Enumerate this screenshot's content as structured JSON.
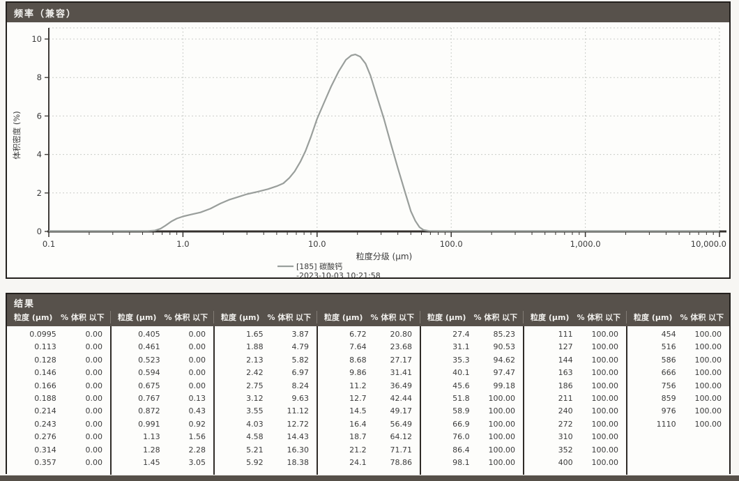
{
  "chart_panel": {
    "title": "频率（兼容）"
  },
  "chart_data": {
    "type": "line",
    "title": "频率（兼容）",
    "xlabel": "粒度分级 (μm)",
    "ylabel": "体积密度 (%)",
    "x_scale": "log",
    "xlim": [
      0.1,
      10000
    ],
    "ylim": [
      0,
      10
    ],
    "x_tick_labels": [
      "0.1",
      "1.0",
      "10.0",
      "100.0",
      "1,000.0",
      "10,000.0"
    ],
    "x_tick_values": [
      0.1,
      1,
      10,
      100,
      1000,
      10000
    ],
    "y_ticks": [
      0,
      2,
      4,
      6,
      8,
      10
    ],
    "grid": true,
    "legend_position": "bottom-center",
    "legend": {
      "name": "[185] 碳酸钙",
      "date": "-2023-10-03 10:21:58"
    },
    "series": [
      {
        "name": "[185] 碳酸钙",
        "color": "#999e9b",
        "points": [
          [
            0.1,
            0.02
          ],
          [
            0.55,
            0.02
          ],
          [
            0.62,
            0.05
          ],
          [
            0.68,
            0.14
          ],
          [
            0.74,
            0.3
          ],
          [
            0.82,
            0.52
          ],
          [
            0.9,
            0.67
          ],
          [
            1.0,
            0.78
          ],
          [
            1.15,
            0.88
          ],
          [
            1.35,
            0.99
          ],
          [
            1.6,
            1.18
          ],
          [
            1.9,
            1.45
          ],
          [
            2.2,
            1.64
          ],
          [
            2.6,
            1.8
          ],
          [
            3.0,
            1.94
          ],
          [
            3.6,
            2.06
          ],
          [
            4.3,
            2.2
          ],
          [
            5.0,
            2.35
          ],
          [
            5.6,
            2.5
          ],
          [
            6.2,
            2.78
          ],
          [
            6.8,
            3.12
          ],
          [
            7.5,
            3.62
          ],
          [
            8.2,
            4.18
          ],
          [
            9.0,
            4.92
          ],
          [
            10.0,
            5.85
          ],
          [
            11.2,
            6.65
          ],
          [
            12.7,
            7.52
          ],
          [
            14.5,
            8.32
          ],
          [
            16.4,
            8.92
          ],
          [
            18.0,
            9.15
          ],
          [
            19.3,
            9.2
          ],
          [
            21.0,
            9.08
          ],
          [
            23.0,
            8.72
          ],
          [
            25.0,
            8.1
          ],
          [
            28.0,
            7.0
          ],
          [
            31.5,
            5.85
          ],
          [
            35.5,
            4.55
          ],
          [
            40.0,
            3.3
          ],
          [
            45.0,
            2.1
          ],
          [
            50.0,
            1.05
          ],
          [
            54.0,
            0.55
          ],
          [
            58.0,
            0.22
          ],
          [
            62.0,
            0.08
          ],
          [
            68.0,
            0.03
          ],
          [
            80.0,
            0.02
          ],
          [
            100.0,
            0.02
          ],
          [
            10000,
            0.02
          ]
        ]
      }
    ]
  },
  "results": {
    "title": "结果",
    "col_headers": {
      "size": "粒度 (μm)",
      "cum": "% 体积 以下"
    },
    "tables": [
      {
        "rows": [
          [
            "0.0995",
            "0.00"
          ],
          [
            "0.113",
            "0.00"
          ],
          [
            "0.128",
            "0.00"
          ],
          [
            "0.146",
            "0.00"
          ],
          [
            "0.166",
            "0.00"
          ],
          [
            "0.188",
            "0.00"
          ],
          [
            "0.214",
            "0.00"
          ],
          [
            "0.243",
            "0.00"
          ],
          [
            "0.276",
            "0.00"
          ],
          [
            "0.314",
            "0.00"
          ],
          [
            "0.357",
            "0.00"
          ]
        ]
      },
      {
        "rows": [
          [
            "0.405",
            "0.00"
          ],
          [
            "0.461",
            "0.00"
          ],
          [
            "0.523",
            "0.00"
          ],
          [
            "0.594",
            "0.00"
          ],
          [
            "0.675",
            "0.00"
          ],
          [
            "0.767",
            "0.13"
          ],
          [
            "0.872",
            "0.43"
          ],
          [
            "0.991",
            "0.92"
          ],
          [
            "1.13",
            "1.56"
          ],
          [
            "1.28",
            "2.28"
          ],
          [
            "1.45",
            "3.05"
          ]
        ]
      },
      {
        "rows": [
          [
            "1.65",
            "3.87"
          ],
          [
            "1.88",
            "4.79"
          ],
          [
            "2.13",
            "5.82"
          ],
          [
            "2.42",
            "6.97"
          ],
          [
            "2.75",
            "8.24"
          ],
          [
            "3.12",
            "9.63"
          ],
          [
            "3.55",
            "11.12"
          ],
          [
            "4.03",
            "12.72"
          ],
          [
            "4.58",
            "14.43"
          ],
          [
            "5.21",
            "16.30"
          ],
          [
            "5.92",
            "18.38"
          ]
        ]
      },
      {
        "rows": [
          [
            "6.72",
            "20.80"
          ],
          [
            "7.64",
            "23.68"
          ],
          [
            "8.68",
            "27.17"
          ],
          [
            "9.86",
            "31.41"
          ],
          [
            "11.2",
            "36.49"
          ],
          [
            "12.7",
            "42.44"
          ],
          [
            "14.5",
            "49.17"
          ],
          [
            "16.4",
            "56.49"
          ],
          [
            "18.7",
            "64.12"
          ],
          [
            "21.2",
            "71.71"
          ],
          [
            "24.1",
            "78.86"
          ]
        ]
      },
      {
        "rows": [
          [
            "27.4",
            "85.23"
          ],
          [
            "31.1",
            "90.53"
          ],
          [
            "35.3",
            "94.62"
          ],
          [
            "40.1",
            "97.47"
          ],
          [
            "45.6",
            "99.18"
          ],
          [
            "51.8",
            "100.00"
          ],
          [
            "58.9",
            "100.00"
          ],
          [
            "66.9",
            "100.00"
          ],
          [
            "76.0",
            "100.00"
          ],
          [
            "86.4",
            "100.00"
          ],
          [
            "98.1",
            "100.00"
          ]
        ]
      },
      {
        "rows": [
          [
            "111",
            "100.00"
          ],
          [
            "127",
            "100.00"
          ],
          [
            "144",
            "100.00"
          ],
          [
            "163",
            "100.00"
          ],
          [
            "186",
            "100.00"
          ],
          [
            "211",
            "100.00"
          ],
          [
            "240",
            "100.00"
          ],
          [
            "272",
            "100.00"
          ],
          [
            "310",
            "100.00"
          ],
          [
            "352",
            "100.00"
          ],
          [
            "400",
            "100.00"
          ]
        ]
      },
      {
        "rows": [
          [
            "454",
            "100.00"
          ],
          [
            "516",
            "100.00"
          ],
          [
            "586",
            "100.00"
          ],
          [
            "666",
            "100.00"
          ],
          [
            "756",
            "100.00"
          ],
          [
            "859",
            "100.00"
          ],
          [
            "976",
            "100.00"
          ],
          [
            "1110",
            "100.00"
          ]
        ]
      }
    ]
  }
}
